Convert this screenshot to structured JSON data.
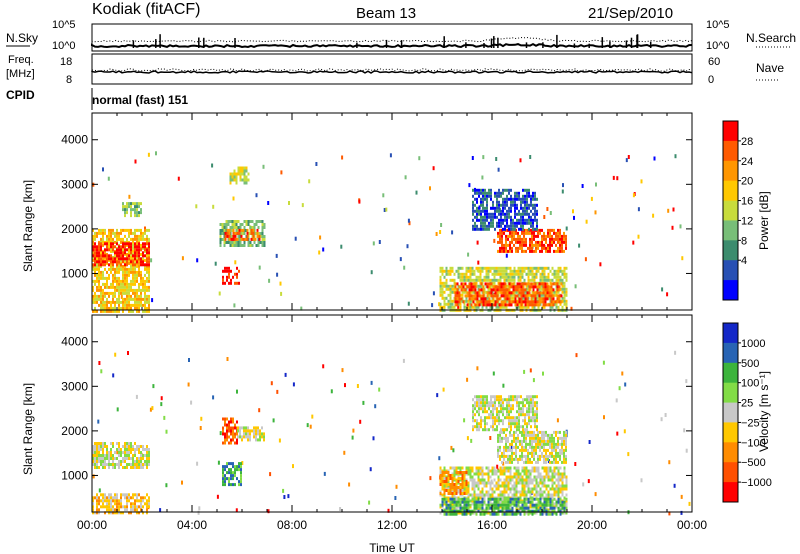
{
  "header": {
    "station": "Kodiak (fitACF)",
    "beam": "Beam 13",
    "date": "21/Sep/2010"
  },
  "strip_panels": {
    "nsky_label": "N.Sky",
    "nsearch_label": "N.Search",
    "nsky_ticks": [
      "10^5",
      "10^0"
    ],
    "nsearch_ticks": [
      "10^5",
      "10^0"
    ],
    "freq_label_line1": "Freq.",
    "freq_label_line2": "[MHz]",
    "freq_ticks": [
      "18",
      "8"
    ],
    "nave_label": "Nave",
    "nave_ticks": [
      "60",
      "0"
    ],
    "cpid_label": "CPID",
    "cpid_text": "normal (fast) 151"
  },
  "chart_data": [
    {
      "type": "heatmap",
      "name": "power-panel",
      "ylabel": "Slant Range [km]",
      "xlabel": "",
      "xlim": [
        0,
        24
      ],
      "ylim": [
        180,
        4600
      ],
      "yticks": [
        1000,
        2000,
        3000,
        4000
      ],
      "colorbar": {
        "label": "Power [dB]",
        "ticks": [
          "28",
          "24",
          "20",
          "16",
          "12",
          "8",
          "4"
        ],
        "colors": [
          "#ff0000",
          "#ff5a00",
          "#ff9600",
          "#ffc800",
          "#c8dc3c",
          "#78be78",
          "#3c8c6e",
          "#2850b4",
          "#0000ff"
        ]
      },
      "regions": [
        {
          "t0": 0.0,
          "t1": 2.3,
          "r0": 150,
          "r1": 2000,
          "c": 3
        },
        {
          "t0": 0.0,
          "t1": 2.3,
          "r0": 1200,
          "r1": 1700,
          "c": 0
        },
        {
          "t0": 1.2,
          "t1": 2.0,
          "r0": 2300,
          "r1": 2600,
          "c": 5
        },
        {
          "t0": 5.1,
          "t1": 6.9,
          "r0": 1650,
          "r1": 2200,
          "c": 5
        },
        {
          "t0": 5.3,
          "t1": 6.7,
          "r0": 1750,
          "r1": 2000,
          "c": 1
        },
        {
          "t0": 5.2,
          "t1": 5.9,
          "r0": 800,
          "r1": 1150,
          "c": 0
        },
        {
          "t0": 5.5,
          "t1": 6.3,
          "r0": 3000,
          "r1": 3400,
          "c": 4
        },
        {
          "t0": 13.9,
          "t1": 19.0,
          "r0": 150,
          "r1": 1150,
          "c": 4
        },
        {
          "t0": 14.5,
          "t1": 18.8,
          "r0": 300,
          "r1": 800,
          "c": 1
        },
        {
          "t0": 16.2,
          "t1": 19.0,
          "r0": 1500,
          "r1": 2000,
          "c": 1
        },
        {
          "t0": 15.2,
          "t1": 17.8,
          "r0": 2000,
          "r1": 2900,
          "c": 7
        }
      ]
    },
    {
      "type": "heatmap",
      "name": "velocity-panel",
      "ylabel": "Slant Range [km]",
      "xlabel": "Time UT",
      "xlim": [
        0,
        24
      ],
      "ylim": [
        180,
        4600
      ],
      "xticks": [
        "00:00",
        "04:00",
        "08:00",
        "12:00",
        "16:00",
        "20:00",
        "00:00"
      ],
      "yticks": [
        1000,
        2000,
        3000,
        4000
      ],
      "colorbar": {
        "label": "Velocity [m s⁻¹]",
        "ticks": [
          "1000",
          "500",
          "100",
          "25",
          "−25",
          "−100",
          "−500",
          "−1000"
        ],
        "colors": [
          "#1428c8",
          "#2864b4",
          "#3cb43c",
          "#82dc46",
          "#c8c8c8",
          "#ffc800",
          "#ff8c00",
          "#ff5000",
          "#ff0000"
        ]
      },
      "regions": [
        {
          "t0": 0.0,
          "t1": 2.3,
          "r0": 1200,
          "r1": 1750,
          "c": 4
        },
        {
          "t0": 0.0,
          "t1": 2.3,
          "r0": 150,
          "r1": 600,
          "c": 5
        },
        {
          "t0": 5.2,
          "t1": 5.8,
          "r0": 1700,
          "r1": 2300,
          "c": 7
        },
        {
          "t0": 5.2,
          "t1": 6.0,
          "r0": 800,
          "r1": 1300,
          "c": 2
        },
        {
          "t0": 5.8,
          "t1": 6.9,
          "r0": 1800,
          "r1": 2100,
          "c": 4
        },
        {
          "t0": 13.9,
          "t1": 19.0,
          "r0": 150,
          "r1": 1200,
          "c": 4
        },
        {
          "t0": 13.9,
          "t1": 19.0,
          "r0": 150,
          "r1": 500,
          "c": 2
        },
        {
          "t0": 13.9,
          "t1": 15.0,
          "r0": 600,
          "r1": 1100,
          "c": 6
        },
        {
          "t0": 16.2,
          "t1": 19.0,
          "r0": 1300,
          "r1": 2000,
          "c": 4
        },
        {
          "t0": 15.2,
          "t1": 17.8,
          "r0": 2000,
          "r1": 2800,
          "c": 4
        }
      ]
    }
  ]
}
